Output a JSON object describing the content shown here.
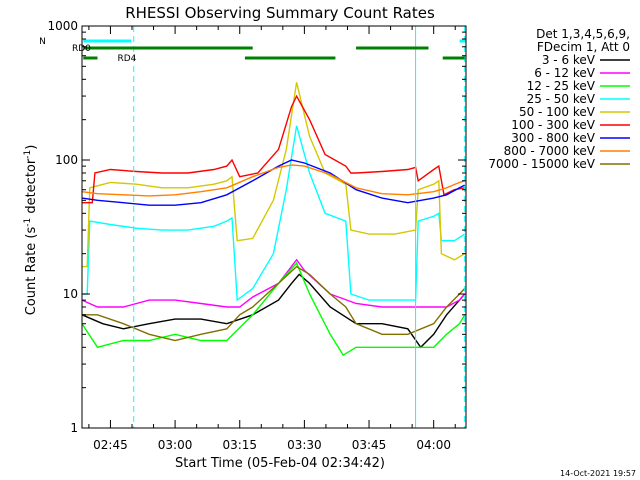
{
  "chart_data": {
    "type": "line",
    "title": "RHESSI Observing Summary Count Rates",
    "xlabel": "Start Time (05-Feb-04 02:34:42)",
    "ylabel": "Count Rate (s",
    "ylabel_sup": "-1",
    "ylabel_suffix": " detector",
    "ylabel_sup2": "-1",
    "ylabel_close": ")",
    "yscale": "log",
    "ylim": [
      1,
      1000
    ],
    "xlim": [
      2.64,
      4.125
    ],
    "yticks": [
      {
        "value": 1,
        "label": "1"
      },
      {
        "value": 10,
        "label": "10"
      },
      {
        "value": 100,
        "label": "100"
      },
      {
        "value": 1000,
        "label": "1000"
      }
    ],
    "xticks": [
      {
        "value": 2.75,
        "label": "02:45"
      },
      {
        "value": 3.0,
        "label": "03:00"
      },
      {
        "value": 3.25,
        "label": "03:15"
      },
      {
        "value": 3.5,
        "label": "03:30"
      },
      {
        "value": 3.75,
        "label": "03:45"
      },
      {
        "value": 4.0,
        "label": "04:00"
      }
    ],
    "legend": {
      "placement": "right",
      "header": [
        "Det 1,3,4,5,6,9,",
        "FDecim 1, Att 0"
      ],
      "entries": [
        {
          "label": "3 - 6 keV",
          "color": "#000000"
        },
        {
          "label": "6 - 12 keV",
          "color": "#ff00ff"
        },
        {
          "label": "12 - 25 keV",
          "color": "#00ff00"
        },
        {
          "label": "25 - 50 keV",
          "color": "#00ffff"
        },
        {
          "label": "50 - 100 keV",
          "color": "#d4c800"
        },
        {
          "label": "100 - 300 keV",
          "color": "#ff0000"
        },
        {
          "label": "300 - 800 keV",
          "color": "#0000ff"
        },
        {
          "label": "800 - 7000 keV",
          "color": "#ff8000"
        },
        {
          "label": "7000 - 15000 keV",
          "color": "#807000"
        }
      ]
    },
    "flags": [
      {
        "label": "N",
        "color": "#00ffff",
        "segments": [
          [
            2.645,
            2.83
          ],
          [
            4.1,
            4.39
          ]
        ]
      },
      {
        "label": "RD0",
        "color": "#008000",
        "segments": [
          [
            2.645,
            3.3
          ],
          [
            3.7,
            3.98
          ]
        ]
      },
      {
        "label": "RD4",
        "color": "#008000",
        "segments": [
          [
            2.645,
            2.7
          ],
          [
            3.27,
            3.62
          ],
          [
            4.035,
            4.12
          ]
        ]
      }
    ],
    "vertical_markers": [
      {
        "x": 2.84,
        "style": "dashed"
      },
      {
        "x": 4.12,
        "style": "dashed"
      },
      {
        "x": 3.93,
        "style": "solid"
      }
    ],
    "series": [
      {
        "name": "3 - 6 keV",
        "color": "#000000",
        "points": [
          [
            2.64,
            7
          ],
          [
            2.72,
            6
          ],
          [
            2.8,
            5.5
          ],
          [
            2.9,
            6
          ],
          [
            3.0,
            6.5
          ],
          [
            3.1,
            6.5
          ],
          [
            3.2,
            6
          ],
          [
            3.3,
            7
          ],
          [
            3.4,
            9
          ],
          [
            3.45,
            12
          ],
          [
            3.48,
            14
          ],
          [
            3.52,
            12
          ],
          [
            3.6,
            8
          ],
          [
            3.7,
            6
          ],
          [
            3.8,
            6
          ],
          [
            3.9,
            5.5
          ],
          [
            3.95,
            4
          ],
          [
            4.0,
            5
          ],
          [
            4.05,
            7
          ],
          [
            4.1,
            9
          ],
          [
            4.12,
            10
          ]
        ]
      },
      {
        "name": "6 - 12 keV",
        "color": "#ff00ff",
        "points": [
          [
            2.64,
            9
          ],
          [
            2.7,
            8
          ],
          [
            2.8,
            8
          ],
          [
            2.9,
            9
          ],
          [
            3.0,
            9
          ],
          [
            3.1,
            8.5
          ],
          [
            3.2,
            8
          ],
          [
            3.25,
            8
          ],
          [
            3.3,
            9.5
          ],
          [
            3.4,
            12
          ],
          [
            3.47,
            18
          ],
          [
            3.5,
            15
          ],
          [
            3.6,
            10
          ],
          [
            3.7,
            8.5
          ],
          [
            3.8,
            8
          ],
          [
            3.9,
            8
          ],
          [
            4.0,
            8
          ],
          [
            4.05,
            8
          ],
          [
            4.1,
            9
          ],
          [
            4.12,
            10
          ]
        ]
      },
      {
        "name": "12 - 25 keV",
        "color": "#00ff00",
        "points": [
          [
            2.64,
            6
          ],
          [
            2.7,
            4
          ],
          [
            2.8,
            4.5
          ],
          [
            2.9,
            4.5
          ],
          [
            3.0,
            5
          ],
          [
            3.1,
            4.5
          ],
          [
            3.2,
            4.5
          ],
          [
            3.3,
            7
          ],
          [
            3.4,
            12
          ],
          [
            3.47,
            17
          ],
          [
            3.52,
            10
          ],
          [
            3.6,
            5
          ],
          [
            3.65,
            3.5
          ],
          [
            3.7,
            4
          ],
          [
            3.8,
            4
          ],
          [
            3.9,
            4
          ],
          [
            4.0,
            4
          ],
          [
            4.05,
            5
          ],
          [
            4.1,
            6
          ],
          [
            4.12,
            7
          ]
        ]
      },
      {
        "name": "25 - 50 keV",
        "color": "#00ffff",
        "points": [
          [
            2.64,
            10
          ],
          [
            2.66,
            10
          ],
          [
            2.67,
            35
          ],
          [
            2.75,
            33
          ],
          [
            2.85,
            31
          ],
          [
            2.95,
            30
          ],
          [
            3.05,
            30
          ],
          [
            3.15,
            32
          ],
          [
            3.2,
            35
          ],
          [
            3.22,
            37
          ],
          [
            3.24,
            9
          ],
          [
            3.3,
            11
          ],
          [
            3.38,
            20
          ],
          [
            3.43,
            60
          ],
          [
            3.47,
            180
          ],
          [
            3.52,
            80
          ],
          [
            3.58,
            40
          ],
          [
            3.66,
            35
          ],
          [
            3.68,
            10
          ],
          [
            3.75,
            9
          ],
          [
            3.85,
            9
          ],
          [
            3.93,
            9
          ],
          [
            3.94,
            35
          ],
          [
            4.0,
            38
          ],
          [
            4.02,
            40
          ],
          [
            4.03,
            25
          ],
          [
            4.08,
            25
          ],
          [
            4.12,
            28
          ]
        ]
      },
      {
        "name": "50 - 100 keV",
        "color": "#d4c800",
        "points": [
          [
            2.64,
            16
          ],
          [
            2.66,
            16
          ],
          [
            2.67,
            62
          ],
          [
            2.75,
            68
          ],
          [
            2.85,
            66
          ],
          [
            2.95,
            62
          ],
          [
            3.05,
            62
          ],
          [
            3.15,
            66
          ],
          [
            3.2,
            70
          ],
          [
            3.22,
            75
          ],
          [
            3.24,
            25
          ],
          [
            3.3,
            26
          ],
          [
            3.38,
            50
          ],
          [
            3.43,
            120
          ],
          [
            3.47,
            380
          ],
          [
            3.52,
            150
          ],
          [
            3.58,
            80
          ],
          [
            3.66,
            66
          ],
          [
            3.68,
            30
          ],
          [
            3.75,
            28
          ],
          [
            3.85,
            28
          ],
          [
            3.93,
            30
          ],
          [
            3.94,
            60
          ],
          [
            4.0,
            66
          ],
          [
            4.02,
            70
          ],
          [
            4.03,
            20
          ],
          [
            4.08,
            18
          ],
          [
            4.12,
            20
          ]
        ]
      },
      {
        "name": "100 - 300 keV",
        "color": "#ff0000",
        "points": [
          [
            2.64,
            48
          ],
          [
            2.68,
            48
          ],
          [
            2.69,
            80
          ],
          [
            2.75,
            85
          ],
          [
            2.85,
            82
          ],
          [
            2.95,
            80
          ],
          [
            3.05,
            80
          ],
          [
            3.15,
            85
          ],
          [
            3.2,
            90
          ],
          [
            3.22,
            100
          ],
          [
            3.25,
            75
          ],
          [
            3.32,
            80
          ],
          [
            3.4,
            120
          ],
          [
            3.45,
            250
          ],
          [
            3.47,
            300
          ],
          [
            3.52,
            200
          ],
          [
            3.58,
            110
          ],
          [
            3.66,
            90
          ],
          [
            3.68,
            80
          ],
          [
            3.7,
            80
          ],
          [
            3.8,
            82
          ],
          [
            3.9,
            85
          ],
          [
            3.93,
            88
          ],
          [
            3.94,
            70
          ],
          [
            4.0,
            85
          ],
          [
            4.02,
            90
          ],
          [
            4.04,
            55
          ],
          [
            4.08,
            60
          ],
          [
            4.12,
            62
          ]
        ]
      },
      {
        "name": "300 - 800 keV",
        "color": "#0000ff",
        "points": [
          [
            2.64,
            52
          ],
          [
            2.7,
            50
          ],
          [
            2.8,
            48
          ],
          [
            2.9,
            46
          ],
          [
            3.0,
            46
          ],
          [
            3.1,
            48
          ],
          [
            3.2,
            55
          ],
          [
            3.3,
            70
          ],
          [
            3.4,
            90
          ],
          [
            3.45,
            100
          ],
          [
            3.5,
            95
          ],
          [
            3.6,
            80
          ],
          [
            3.7,
            60
          ],
          [
            3.8,
            52
          ],
          [
            3.9,
            48
          ],
          [
            4.0,
            52
          ],
          [
            4.05,
            55
          ],
          [
            4.1,
            62
          ],
          [
            4.12,
            65
          ]
        ]
      },
      {
        "name": "800 - 7000 keV",
        "color": "#ff8000",
        "points": [
          [
            2.64,
            58
          ],
          [
            2.7,
            56
          ],
          [
            2.8,
            55
          ],
          [
            2.9,
            54
          ],
          [
            3.0,
            55
          ],
          [
            3.1,
            58
          ],
          [
            3.2,
            62
          ],
          [
            3.3,
            75
          ],
          [
            3.4,
            88
          ],
          [
            3.45,
            92
          ],
          [
            3.5,
            90
          ],
          [
            3.6,
            78
          ],
          [
            3.7,
            62
          ],
          [
            3.8,
            56
          ],
          [
            3.9,
            55
          ],
          [
            4.0,
            58
          ],
          [
            4.05,
            62
          ],
          [
            4.1,
            68
          ],
          [
            4.12,
            70
          ]
        ]
      },
      {
        "name": "7000 - 15000 keV",
        "color": "#807000",
        "points": [
          [
            2.64,
            7
          ],
          [
            2.7,
            7
          ],
          [
            2.8,
            6
          ],
          [
            2.9,
            5
          ],
          [
            3.0,
            4.5
          ],
          [
            3.1,
            5
          ],
          [
            3.2,
            5.5
          ],
          [
            3.25,
            7
          ],
          [
            3.3,
            8
          ],
          [
            3.4,
            12
          ],
          [
            3.47,
            16
          ],
          [
            3.52,
            14
          ],
          [
            3.6,
            10
          ],
          [
            3.66,
            8
          ],
          [
            3.7,
            6
          ],
          [
            3.8,
            5
          ],
          [
            3.9,
            5
          ],
          [
            4.0,
            6
          ],
          [
            4.05,
            8
          ],
          [
            4.1,
            10
          ],
          [
            4.12,
            11
          ]
        ]
      }
    ]
  },
  "footer": {
    "timestamp": "14-Oct-2021 19:57"
  }
}
